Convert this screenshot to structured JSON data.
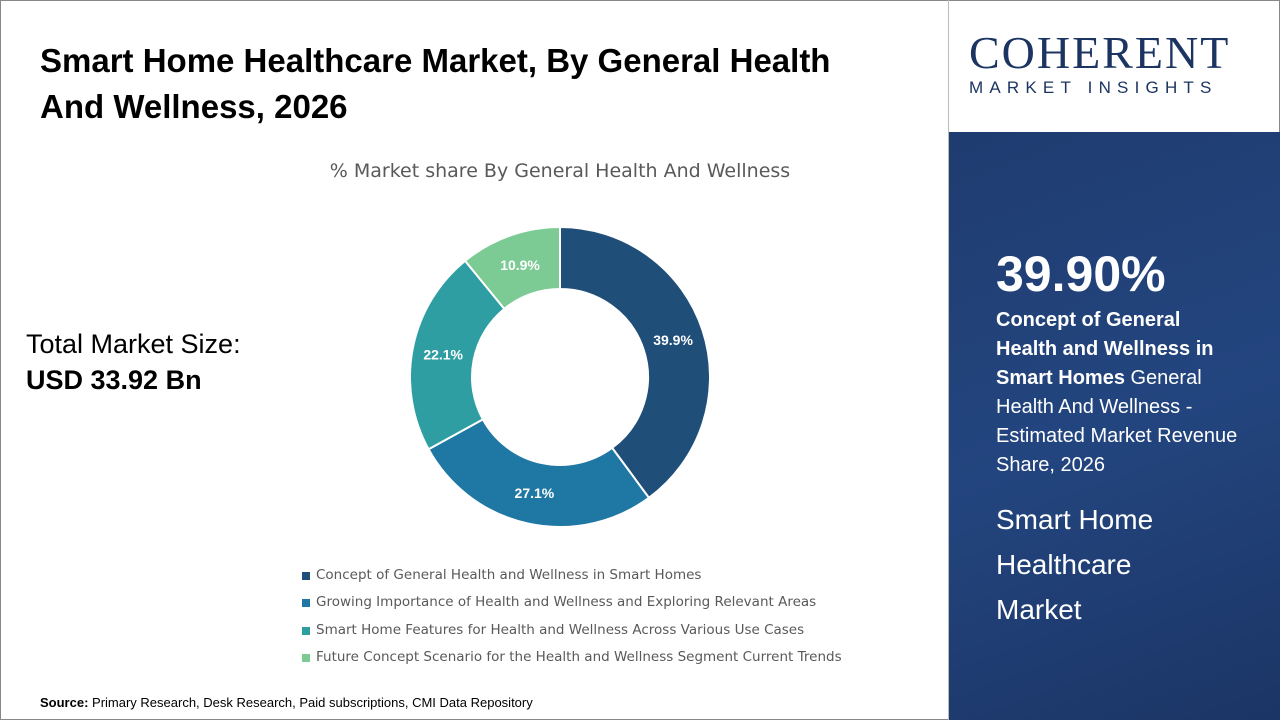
{
  "title": "Smart Home Healthcare Market, By General Health And Wellness, 2026",
  "total": {
    "label": "Total Market Size:",
    "value": "USD 33.92 Bn"
  },
  "source": {
    "label": "Source:",
    "text": "Primary Research, Desk Research, Paid subscriptions, CMI Data Repository"
  },
  "logo": {
    "line1": "COHERENT",
    "line2": "MARKET INSIGHTS"
  },
  "highlight": {
    "percent": "39.90%",
    "bold": "Concept of General Health and Wellness in Smart Homes",
    "rest": " General Health And Wellness - Estimated Market Revenue Share, 2026",
    "market": "Smart Home Healthcare Market"
  },
  "chart_data": {
    "type": "pie",
    "donut": true,
    "title": "% Market share By General Health And Wellness",
    "categories": [
      "Concept of General Health and Wellness in Smart Homes",
      "Growing Importance of Health and Wellness and Exploring Relevant Areas",
      "Smart Home Features for Health and Wellness Across Various Use Cases",
      "Future Concept Scenario for the Health and Wellness Segment Current Trends"
    ],
    "values": [
      39.9,
      27.1,
      22.1,
      10.9
    ],
    "labels": [
      "39.9%",
      "27.1%",
      "22.1%",
      "10.9%"
    ],
    "colors": [
      "#1f4e79",
      "#1f77a3",
      "#2e9ea3",
      "#7ccb94"
    ],
    "legend": "bottom"
  }
}
